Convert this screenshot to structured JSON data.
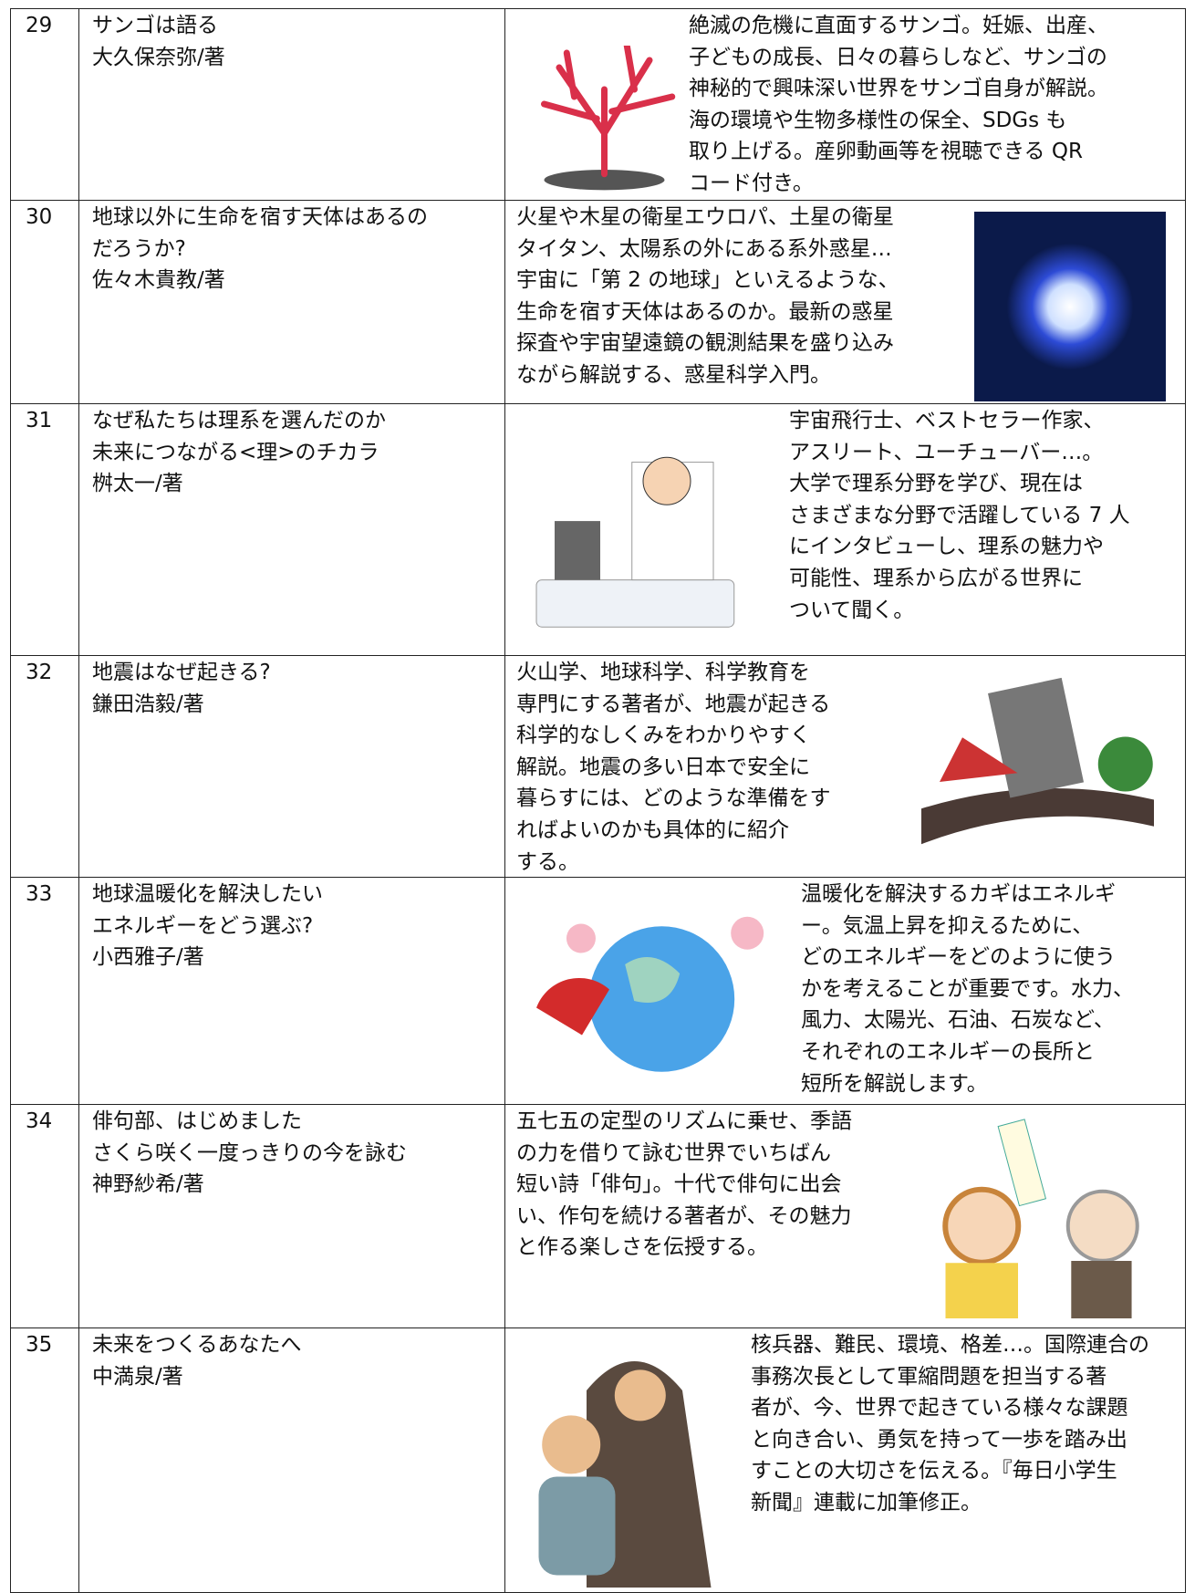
{
  "table": {
    "rows": [
      {
        "number": "29",
        "title_lines": [
          "サンゴは語る",
          "大久保奈弥/著"
        ],
        "description_lines": [
          "絶滅の危機に直面するサンゴ。妊娠、出産、",
          "子どもの成長、日々の暮らしなど、サンゴの",
          "神秘的で興味深い世界をサンゴ自身が解説。",
          "海の環境や生物多様性の保全、SDGs も",
          "取り上げる。産卵動画等を視聴できる QR",
          "コード付き。"
        ]
      },
      {
        "number": "30",
        "title_lines": [
          "地球以外に生命を宿す天体はあるの",
          "だろうか?",
          "佐々木貴教/著"
        ],
        "description_lines": [
          "火星や木星の衛星エウロパ、土星の衛星",
          "タイタン、太陽系の外にある系外惑星…",
          "宇宙に「第 2 の地球」といえるような、",
          "生命を宿す天体はあるのか。最新の惑星",
          "探査や宇宙望遠鏡の観測結果を盛り込み",
          "ながら解説する、惑星科学入門。"
        ]
      },
      {
        "number": "31",
        "title_lines": [
          "なぜ私たちは理系を選んだのか",
          "未来につながる<理>のチカラ",
          "桝太一/著"
        ],
        "description_lines": [
          "宇宙飛行士、ベストセラー作家、",
          "アスリート、ユーチューバー…。",
          "大学で理系分野を学び、現在は",
          "さまざまな分野で活躍している 7 人",
          "にインタビューし、理系の魅力や",
          "可能性、理系から広がる世界に",
          "ついて聞く。"
        ]
      },
      {
        "number": "32",
        "title_lines": [
          "地震はなぜ起きる?",
          "鎌田浩毅/著"
        ],
        "description_lines": [
          "火山学、地球科学、科学教育を",
          "専門にする著者が、地震が起きる",
          "科学的なしくみをわかりやすく",
          "解説。地震の多い日本で安全に",
          "暮らすには、どのような準備をす",
          "ればよいのかも具体的に紹介",
          "する。"
        ]
      },
      {
        "number": "33",
        "title_lines": [
          "地球温暖化を解決したい",
          "エネルギーをどう選ぶ?",
          "小西雅子/著"
        ],
        "description_lines": [
          "温暖化を解決するカギはエネルギ",
          "ー。気温上昇を抑えるために、",
          "どのエネルギーをどのように使う",
          "かを考えることが重要です。水力、",
          "風力、太陽光、石油、石炭など、",
          "それぞれのエネルギーの長所と",
          "短所を解説します。"
        ]
      },
      {
        "number": "34",
        "title_lines": [
          "俳句部、はじめました",
          "さくら咲く一度っきりの今を詠む",
          "神野紗希/著"
        ],
        "description_lines": [
          "五七五の定型のリズムに乗せ、季語",
          "の力を借りて詠む世界でいちばん",
          "短い詩「俳句」。十代で俳句に出会",
          "い、作句を続ける著者が、その魅力",
          "と作る楽しさを伝授する。"
        ]
      },
      {
        "number": "35",
        "title_lines": [
          "未来をつくるあなたへ",
          "中満泉/著"
        ],
        "description_lines": [
          "核兵器、難民、環境、格差…。国際連合の",
          "事務次長として軍縮問題を担当する著",
          "者が、今、世界で起きている様々な課題",
          "と向き合い、勇気を持って一歩を踏み出",
          "すことの大切さを伝える。『毎日小学生",
          "新聞』連載に加筆修正。"
        ]
      }
    ]
  }
}
